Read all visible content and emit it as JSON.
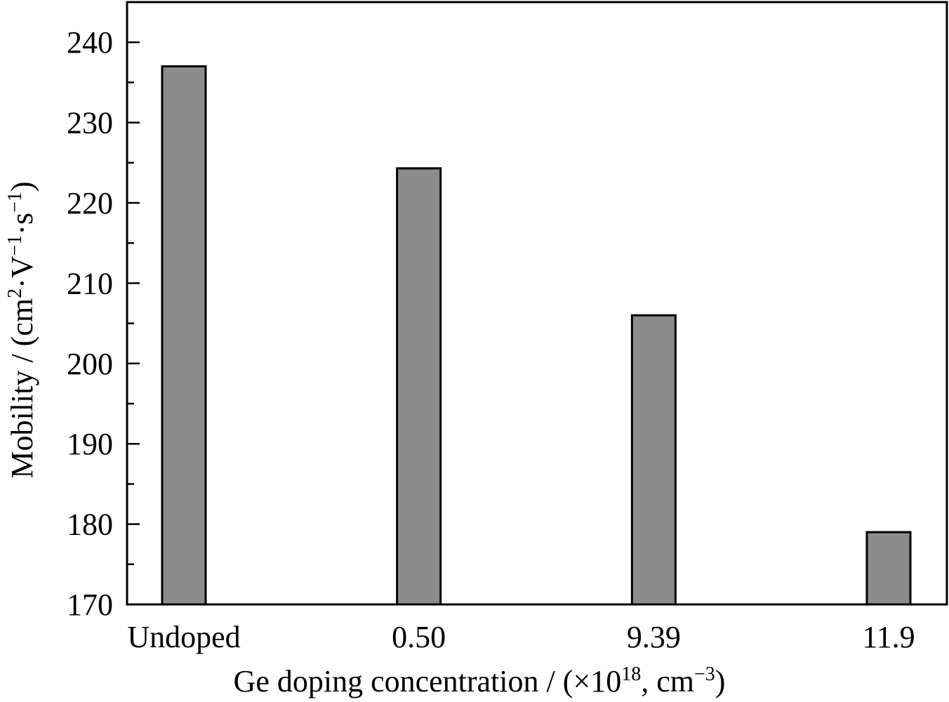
{
  "chart_data": {
    "type": "bar",
    "categories": [
      "Undoped",
      "0.50",
      "9.39",
      "11.9"
    ],
    "values": [
      237,
      224.3,
      206,
      179
    ],
    "ylim": [
      170,
      245
    ],
    "yticks": [
      170,
      180,
      190,
      200,
      210,
      220,
      230,
      240
    ],
    "yminor_step": 5,
    "title": "",
    "xlabel": {
      "prefix": "Ge doping concentration / (×10",
      "sup1": "18",
      "middle": ", cm",
      "sup2": "−3",
      "suffix": ")"
    },
    "ylabel": {
      "prefix": "Mobility / (cm",
      "sup1": "2",
      "mid1": "·V",
      "sup2": "−1",
      "mid2": "·s",
      "sup3": "−1",
      "suffix": ")"
    },
    "bar_color": "#8c8c8c",
    "grid": false
  }
}
